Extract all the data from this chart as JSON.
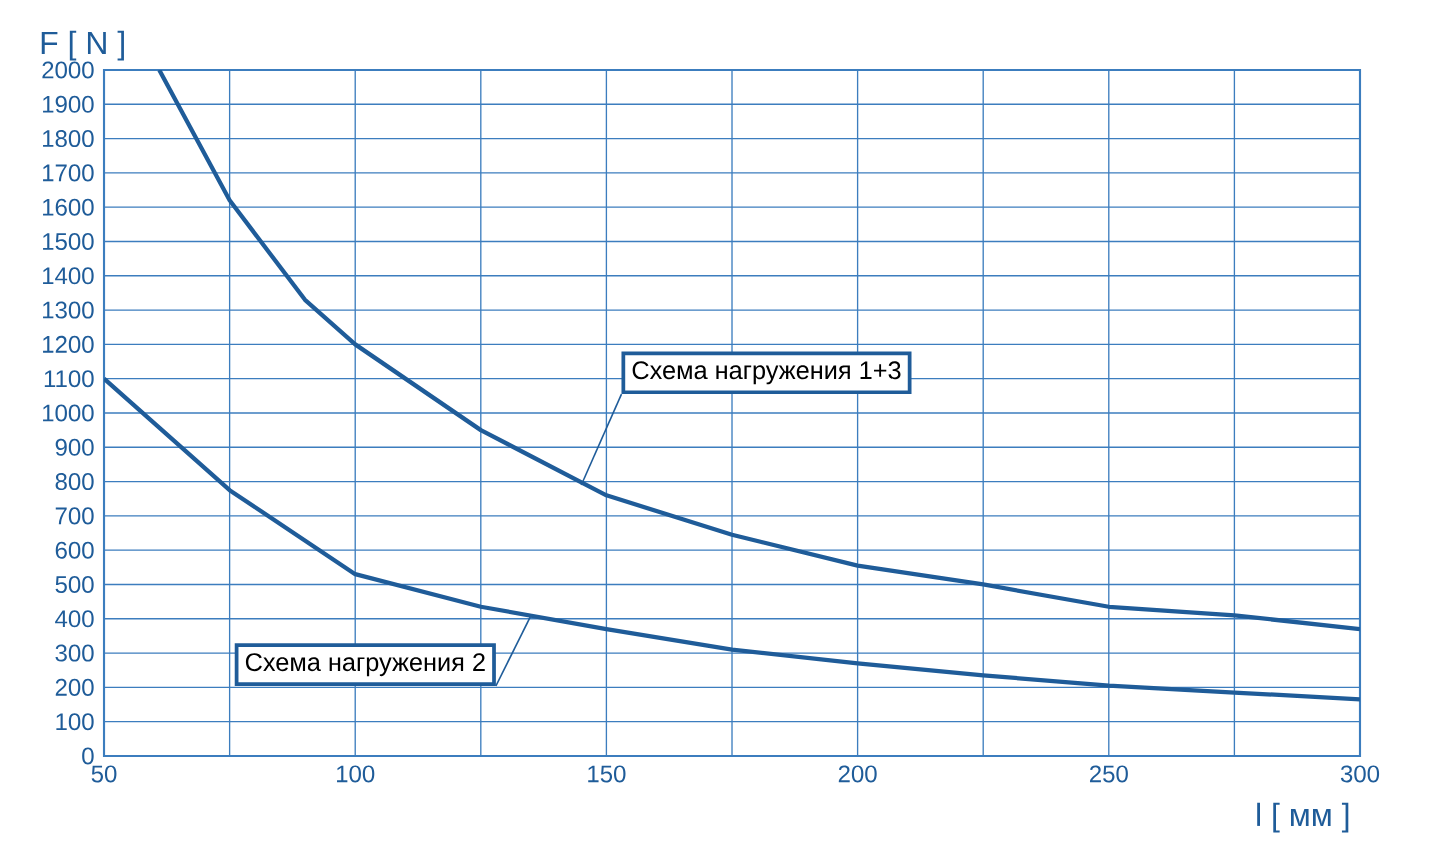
{
  "chart_data": {
    "type": "line",
    "xlabel": "l [ мм ]",
    "ylabel": "F [ N ]",
    "xlim": [
      50,
      300
    ],
    "ylim": [
      0,
      2000
    ],
    "xticks": [
      50,
      {
        "value": 75,
        "label": null
      },
      100,
      {
        "value": 125,
        "label": null
      },
      150,
      {
        "value": 175,
        "label": null
      },
      200,
      {
        "value": 225,
        "label": null
      },
      250,
      {
        "value": 275,
        "label": null
      },
      300
    ],
    "yticks": [
      0,
      100,
      200,
      300,
      400,
      500,
      600,
      700,
      800,
      900,
      1000,
      1100,
      1200,
      1300,
      1400,
      1500,
      1600,
      1700,
      1800,
      1900,
      2000
    ],
    "grid": true,
    "marker": "none",
    "line_style": "solid",
    "series": [
      {
        "color": "#1f5c99",
        "x": [
          61,
          75,
          90,
          100,
          125,
          150,
          175,
          200,
          225,
          250,
          275,
          300
        ],
        "values": [
          2000,
          1620,
          1330,
          1200,
          950,
          760,
          645,
          555,
          500,
          435,
          410,
          370
        ]
      },
      {
        "color": "#1f5c99",
        "x": [
          50,
          75,
          100,
          125,
          150,
          175,
          200,
          225,
          250,
          275,
          300
        ],
        "values": [
          1100,
          775,
          530,
          435,
          370,
          310,
          270,
          235,
          205,
          185,
          165
        ]
      }
    ],
    "annotations": [
      {
        "text": "Схема нагружения 1+3",
        "x": 145,
        "y": 790
      },
      {
        "text": "Схема нагружения 2",
        "x": 135,
        "y": 410
      }
    ]
  }
}
